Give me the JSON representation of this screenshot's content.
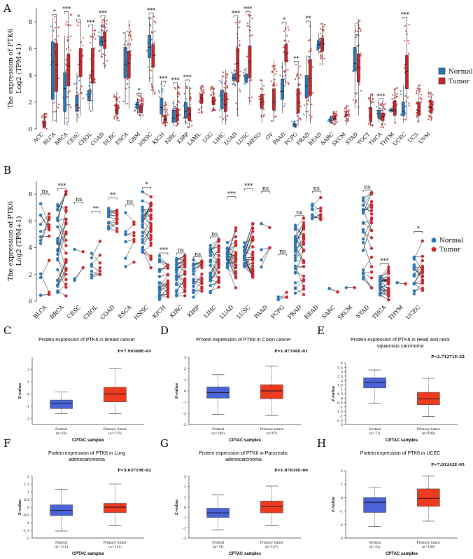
{
  "panel_letters": [
    "A",
    "B",
    "C",
    "D",
    "E",
    "F",
    "G",
    "H"
  ],
  "legend": {
    "normal": "Normal",
    "tumor": "Tumor"
  },
  "colors": {
    "normal": "#2a76b8",
    "tumor": "#c8262c",
    "cptac_normal": "#4a64d8",
    "cptac_tumor": "#ee3b1f"
  },
  "chart_data": [
    {
      "panel": "A",
      "type": "box",
      "ylabel_line1": "The expression  of PTK6",
      "ylabel_line2": "Log2 (TPM+1)",
      "ylim": [
        0,
        9
      ],
      "yticks": [
        0,
        2,
        4,
        6,
        8
      ],
      "categories": [
        "ACC",
        "BLCA",
        "BRCA",
        "CESC",
        "CHOL",
        "COAD",
        "DLBC",
        "ESCA",
        "GBM",
        "HNSC",
        "KICH",
        "KIRC",
        "KIRP",
        "LAML",
        "LGG",
        "LIHC",
        "LUAD",
        "LUSC",
        "MESO",
        "OV",
        "PAAD",
        "PCPG",
        "PRAD",
        "READ",
        "SARC",
        "SKCM",
        "STAD",
        "TGCT",
        "THCA",
        "THYM",
        "UCEC",
        "UCS",
        "UVM"
      ],
      "series": [
        {
          "name": "Normal",
          "boxes": {
            "BLCA": [
              0.5,
              2.2,
              5.0,
              6.5,
              8.3
            ],
            "BRCA": [
              0.3,
              1.3,
              3.0,
              4.2,
              7.0
            ],
            "CESC": [
              0.5,
              1.3,
              1.8,
              2.5,
              4.2
            ],
            "CHOL": [
              1.4,
              2.1,
              2.4,
              2.9,
              4.0
            ],
            "COAD": [
              5.3,
              6.2,
              6.5,
              6.9,
              7.8
            ],
            "ESCA": [
              1.8,
              3.8,
              4.8,
              6.1,
              7.2
            ],
            "GBM": [
              1.1,
              1.5,
              1.8,
              2.0,
              2.3
            ],
            "HNSC": [
              3.5,
              5.3,
              6.1,
              7.0,
              8.4
            ],
            "KICH": [
              0.5,
              1.1,
              1.6,
              2.3,
              3.4
            ],
            "KIRC": [
              0.2,
              0.5,
              0.8,
              1.4,
              2.2
            ],
            "KIRP": [
              0.3,
              0.8,
              1.3,
              2.0,
              3.5
            ],
            "LIHC": [
              0.4,
              1.5,
              2.2,
              2.9,
              4.0
            ],
            "LUAD": [
              3.3,
              3.6,
              3.8,
              4.1,
              4.5
            ],
            "LUSC": [
              3.3,
              3.5,
              3.8,
              4.1,
              4.6
            ],
            "PAAD": [
              1.2,
              2.2,
              2.8,
              3.7,
              5.0
            ],
            "PCPG": [
              0.1,
              0.2,
              0.3,
              0.4,
              0.6
            ],
            "PRAD": [
              0.6,
              2.3,
              3.2,
              4.0,
              5.5
            ],
            "READ": [
              5.6,
              6.0,
              6.3,
              6.6,
              7.1
            ],
            "SARC": [
              0.4,
              0.5,
              0.6,
              0.8,
              1.0
            ],
            "STAD": [
              1.5,
              4.3,
              4.9,
              6.1,
              7.9
            ],
            "THCA": [
              0.5,
              0.8,
              1.1,
              1.4,
              2.0
            ],
            "THYM": [
              1.2,
              1.3,
              1.4,
              1.5,
              1.6
            ],
            "UCEC": [
              0.5,
              1.0,
              1.3,
              2.0,
              3.3
            ]
          }
        },
        {
          "name": "Tumor",
          "boxes": {
            "ACC": [
              0.0,
              0.1,
              0.3,
              0.6,
              1.2
            ],
            "BLCA": [
              0.5,
              2.8,
              4.8,
              6.4,
              8.4
            ],
            "BRCA": [
              0.5,
              3.2,
              4.7,
              5.6,
              8.6
            ],
            "CESC": [
              1.0,
              3.9,
              5.0,
              6.0,
              8.0
            ],
            "CHOL": [
              1.3,
              3.4,
              4.3,
              6.0,
              7.6
            ],
            "COAD": [
              4.5,
              6.0,
              6.6,
              7.2,
              8.3
            ],
            "DLBC": [
              0.6,
              1.1,
              1.4,
              1.8,
              2.8
            ],
            "ESCA": [
              1.5,
              3.8,
              4.9,
              5.8,
              8.1
            ],
            "GBM": [
              0.8,
              1.2,
              1.5,
              1.8,
              2.5
            ],
            "HNSC": [
              2.5,
              4.6,
              5.5,
              6.3,
              8.5
            ],
            "KICH": [
              0.1,
              0.5,
              0.7,
              1.0,
              2.0
            ],
            "KIRC": [
              0.2,
              0.6,
              1.0,
              1.5,
              3.3
            ],
            "KIRP": [
              0.1,
              0.6,
              1.1,
              1.6,
              3.2
            ],
            "LAML": [
              1.2,
              1.9,
              2.3,
              2.6,
              3.3
            ],
            "LGG": [
              1.3,
              1.8,
              2.0,
              2.4,
              3.2
            ],
            "LIHC": [
              0.3,
              1.3,
              1.8,
              2.7,
              4.4
            ],
            "LUAD": [
              1.0,
              3.5,
              4.9,
              6.0,
              8.3
            ],
            "LUSC": [
              1.8,
              3.8,
              5.0,
              6.2,
              8.6
            ],
            "MESO": [
              0.5,
              1.5,
              2.0,
              2.6,
              3.7
            ],
            "OV": [
              0.5,
              1.4,
              2.0,
              3.0,
              5.1
            ],
            "PAAD": [
              3.3,
              5.0,
              5.6,
              6.3,
              7.8
            ],
            "PCPG": [
              0.2,
              1.2,
              2.0,
              3.0,
              4.9
            ],
            "PRAD": [
              0.4,
              2.5,
              3.8,
              5.2,
              7.9
            ],
            "READ": [
              4.7,
              5.8,
              6.4,
              6.8,
              7.9
            ],
            "SARC": [
              0.3,
              0.7,
              0.8,
              1.0,
              1.3
            ],
            "SKCM": [
              0.3,
              1.0,
              1.0,
              1.1,
              1.8
            ],
            "STAD": [
              1.0,
              3.5,
              4.6,
              5.6,
              8.2
            ],
            "TGCT": [
              0.2,
              0.6,
              1.0,
              1.6,
              2.6
            ],
            "THCA": [
              0.1,
              0.6,
              0.9,
              1.2,
              2.1
            ],
            "THYM": [
              0.4,
              1.0,
              1.4,
              2.1,
              3.1
            ],
            "UCEC": [
              0.6,
              3.0,
              4.3,
              5.5,
              8.2
            ],
            "UCS": [
              0.5,
              1.0,
              1.3,
              2.0,
              3.3
            ],
            "UVM": [
              0.6,
              1.2,
              1.6,
              2.1,
              2.8
            ]
          }
        }
      ],
      "significance": {
        "BLCA": "*",
        "BRCA": "***",
        "CESC": "*",
        "CHOL": "***",
        "COAD": "***",
        "GBM": "*",
        "HNSC": "***",
        "KICH": "***",
        "KIRC": "***",
        "KIRP": "***",
        "LUAD": "***",
        "LUSC": "***",
        "PAAD": "*",
        "PCPG": "**",
        "PRAD": "**",
        "THCA": "***",
        "UCEC": "***"
      }
    },
    {
      "panel": "B",
      "type": "paired-dot",
      "ylabel_line1": "The expression  of PTK6",
      "ylabel_line2": "Log2 (TPM+1)",
      "ylim": [
        0,
        9
      ],
      "yticks": [
        0,
        2,
        4,
        6,
        8
      ],
      "categories": [
        "BLCA",
        "BRCA",
        "CESC",
        "CHOL",
        "COAD",
        "ESCA",
        "HNSC",
        "KICH",
        "KIRC",
        "KIRP",
        "LIHC",
        "LUAD",
        "LUSC",
        "PAAD",
        "PCPG",
        "PRAD",
        "READ",
        "SARC",
        "SKCM",
        "STAD",
        "THCA",
        "THYM",
        "UCEC"
      ],
      "significance": [
        "ns",
        "***",
        "ns",
        "**",
        "**",
        "ns",
        "*",
        "***",
        "ns",
        "ns",
        "ns",
        "***",
        "***",
        "ns",
        "ns",
        "ns",
        "ns",
        "",
        "",
        "ns",
        "***",
        "",
        "*"
      ],
      "ranges": {
        "BLCA": [
          [
            0.3,
            7.5
          ],
          [
            0.5,
            7.8
          ],
          12
        ],
        "BRCA": [
          [
            0.0,
            7.5
          ],
          [
            0.2,
            8.2
          ],
          30
        ],
        "CESC": [
          [
            0.8,
            4.5
          ],
          [
            2.5,
            7.2
          ],
          3
        ],
        "CHOL": [
          [
            1.7,
            3.6
          ],
          [
            2.0,
            6.5
          ],
          8
        ],
        "COAD": [
          [
            5.3,
            7.2
          ],
          [
            5.2,
            7.5
          ],
          14
        ],
        "ESCA": [
          [
            2.5,
            7.0
          ],
          [
            2.0,
            7.0
          ],
          7
        ],
        "HNSC": [
          [
            3.5,
            8.3
          ],
          [
            2.5,
            7.8
          ],
          30
        ],
        "KICH": [
          [
            0.1,
            3.4
          ],
          [
            0.0,
            2.7
          ],
          22
        ],
        "KIRC": [
          [
            0.3,
            3.3
          ],
          [
            0.2,
            3.4
          ],
          28
        ],
        "KIRP": [
          [
            0.2,
            3.1
          ],
          [
            0.2,
            3.0
          ],
          20
        ],
        "LIHC": [
          [
            0.6,
            4.2
          ],
          [
            0.4,
            4.6
          ],
          26
        ],
        "LUAD": [
          [
            2.5,
            4.4
          ],
          [
            1.0,
            7.6
          ],
          26
        ],
        "LUSC": [
          [
            2.5,
            4.6
          ],
          [
            1.8,
            8.2
          ],
          28
        ],
        "PAAD": [
          [
            2.5,
            5.8
          ],
          [
            4.0,
            8.0
          ],
          4
        ],
        "PCPG": [
          [
            0.1,
            0.5
          ],
          [
            0.3,
            3.3
          ],
          3
        ],
        "PRAD": [
          [
            0.3,
            5.8
          ],
          [
            0.5,
            6.2
          ],
          30
        ],
        "READ": [
          [
            5.8,
            7.4
          ],
          [
            5.5,
            8.0
          ],
          8
        ],
        "SARC": [
          [
            0.6,
            1.0
          ],
          [
            0.3,
            0.7
          ],
          2
        ],
        "SKCM": [
          [
            1.0,
            1.1
          ],
          [
            1.0,
            1.1
          ],
          1
        ],
        "STAD": [
          [
            1.5,
            7.9
          ],
          [
            1.0,
            8.1
          ],
          24
        ],
        "THCA": [
          [
            0.3,
            1.9
          ],
          [
            0.1,
            2.6
          ],
          30
        ],
        "THYM": [
          [
            1.2,
            1.5
          ],
          [
            1.0,
            1.3
          ],
          2
        ],
        "UCEC": [
          [
            0.5,
            3.4
          ],
          [
            0.8,
            5.0
          ],
          18
        ]
      }
    },
    {
      "panel": "C",
      "type": "box",
      "title": "Protein expression of PTK6 in Breast cancer",
      "pvalue": "P=7.96568E-04",
      "ylabel": "Z-value",
      "xlabel": "CPTAC samples",
      "ylim": [
        -2.5,
        3
      ],
      "yticks": [
        -2,
        -1,
        0,
        1,
        2
      ],
      "categories": [
        "Normal",
        "Primary tumor"
      ],
      "counts": [
        "(n=18)",
        "(n=125)"
      ],
      "boxes": [
        [
          -1.6,
          -1.2,
          -0.75,
          -0.5,
          0.15
        ],
        [
          -1.6,
          -0.65,
          0.0,
          0.55,
          2.05
        ]
      ]
    },
    {
      "panel": "D",
      "type": "box",
      "title": "Protein expression of PTK6 in Colon cancer",
      "pvalue": "P=1.07346E-01",
      "ylabel": "Z-value",
      "xlabel": "CPTAC samples",
      "ylim": [
        -3,
        3
      ],
      "yticks": [
        -3,
        -2,
        -1,
        0,
        1,
        2,
        3
      ],
      "categories": [
        "Normal",
        "Primary tumor"
      ],
      "counts": [
        "(n=100)",
        "(n=97)"
      ],
      "boxes": [
        [
          -2.1,
          -0.65,
          -0.15,
          0.35,
          1.45
        ],
        [
          -2.2,
          -0.7,
          0.0,
          0.55,
          2.2
        ]
      ]
    },
    {
      "panel": "E",
      "type": "box",
      "title": "Protein expression of PTK6 in Head and neck squamous carcinoma",
      "pvalue": "P=2.71271E-22",
      "ylabel": "Z-value",
      "xlabel": "CPTAC samples",
      "ylim": [
        -3,
        4
      ],
      "yticks": [
        -3,
        -2.5,
        -2,
        -1.5,
        -1,
        -0.5,
        0,
        0.5,
        1,
        1.5,
        2,
        2.5,
        3,
        3.5,
        4
      ],
      "ytick_labels": [
        "-3",
        "-2.5",
        "-2",
        "-1.5",
        "-1",
        "-0.5",
        "0",
        "0.5",
        "1",
        "1.5",
        "2",
        "2.5",
        "3",
        "3.5",
        "4"
      ],
      "categories": [
        "Normal",
        "Primary tumor"
      ],
      "counts": [
        "(n=71)",
        "(n=108)"
      ],
      "boxes": [
        [
          -0.6,
          1.15,
          1.75,
          2.3,
          3.2
        ],
        [
          -2.1,
          -0.75,
          -0.1,
          0.65,
          2.25
        ]
      ]
    },
    {
      "panel": "F",
      "type": "box",
      "title": "Protein expression of PTK6 in Lung adenocarcinoma",
      "pvalue": "P=5.03719E-02",
      "ylabel": "Z-value",
      "xlabel": "CPTAC samples",
      "ylim": [
        -2,
        2
      ],
      "yticks": [
        -2,
        -1.5,
        -1,
        -0.5,
        0,
        0.5,
        1,
        1.5,
        2
      ],
      "ytick_labels": [
        "-2",
        "-1.5",
        "-1",
        "-0.5",
        "0",
        "0.5",
        "1",
        "1.5",
        "2"
      ],
      "categories": [
        "Normal",
        "Primary tumor"
      ],
      "counts": [
        "(n=111)",
        "(n=111)"
      ],
      "boxes": [
        [
          -1.55,
          -0.55,
          -0.2,
          0.15,
          1.15
        ],
        [
          -1.2,
          -0.35,
          0.0,
          0.25,
          1.5
        ]
      ]
    },
    {
      "panel": "G",
      "type": "box",
      "title": "Protein expression of PTK6 in Pancreatic adenocarcinoma",
      "pvalue": "P=1.87634E-06",
      "ylabel": "Z-value",
      "xlabel": "CPTAC samples",
      "ylim": [
        -3,
        3
      ],
      "yticks": [
        -3,
        -2,
        -1,
        0,
        1,
        2,
        3
      ],
      "categories": [
        "Normal",
        "Primary tumor"
      ],
      "counts": [
        "(n=74)",
        "(n=137)"
      ],
      "boxes": [
        [
          -2.2,
          -1.0,
          -0.55,
          -0.1,
          1.2
        ],
        [
          -1.8,
          -0.55,
          0.05,
          0.6,
          2.05
        ]
      ]
    },
    {
      "panel": "H",
      "type": "box",
      "title": "Protein expression of PTK6 in UCEC",
      "pvalue": "P=7.81242E-05",
      "ylabel": "Z-value",
      "xlabel": "CPTAC samples",
      "ylim": [
        -3,
        2
      ],
      "yticks": [
        -3,
        -2,
        -1,
        0,
        1,
        2
      ],
      "categories": [
        "Normal",
        "Primary tumor"
      ],
      "counts": [
        "(n=31)",
        "(n=100)"
      ],
      "boxes": [
        [
          -2.15,
          -1.1,
          -0.35,
          0.0,
          0.75
        ],
        [
          -1.75,
          -0.65,
          -0.05,
          0.65,
          1.6
        ]
      ]
    }
  ]
}
